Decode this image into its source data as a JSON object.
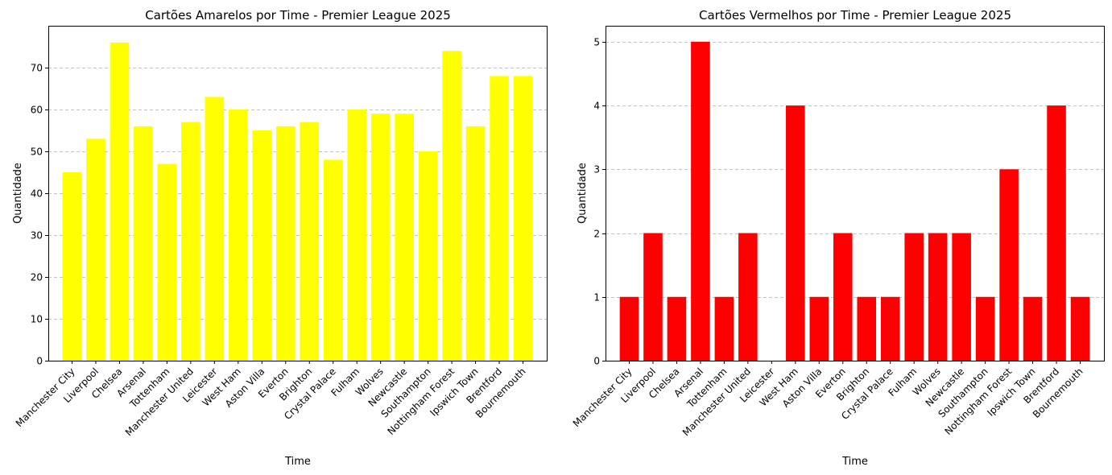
{
  "chart_data": [
    {
      "type": "bar",
      "title": "Cartões Amarelos por Time - Premier League 2025",
      "xlabel": "Time",
      "ylabel": "Quantidade",
      "color": "#ffff00",
      "ylim": [
        0,
        80
      ],
      "yticks": [
        0,
        10,
        20,
        30,
        40,
        50,
        60,
        70
      ],
      "grid": "y-dashed",
      "categories": [
        "Manchester City",
        "Liverpool",
        "Chelsea",
        "Arsenal",
        "Tottenham",
        "Manchester United",
        "Leicester",
        "West Ham",
        "Aston Villa",
        "Everton",
        "Brighton",
        "Crystal Palace",
        "Fulham",
        "Wolves",
        "Newcastle",
        "Southampton",
        "Nottingham Forest",
        "Ipswich Town",
        "Brentford",
        "Bournemouth"
      ],
      "values": [
        45,
        53,
        76,
        56,
        47,
        57,
        63,
        60,
        55,
        56,
        57,
        48,
        60,
        59,
        59,
        50,
        74,
        56,
        68,
        68
      ]
    },
    {
      "type": "bar",
      "title": "Cartões Vermelhos por Time - Premier League 2025",
      "xlabel": "Time",
      "ylabel": "Quantidade",
      "color": "#ff0000",
      "ylim": [
        0,
        5.25
      ],
      "yticks": [
        0,
        1,
        2,
        3,
        4,
        5
      ],
      "grid": "y-dashed",
      "categories": [
        "Manchester City",
        "Liverpool",
        "Chelsea",
        "Arsenal",
        "Tottenham",
        "Manchester United",
        "Leicester",
        "West Ham",
        "Aston Villa",
        "Everton",
        "Brighton",
        "Crystal Palace",
        "Fulham",
        "Wolves",
        "Newcastle",
        "Southampton",
        "Nottingham Forest",
        "Ipswich Town",
        "Brentford",
        "Bournemouth"
      ],
      "values": [
        1,
        2,
        1,
        5,
        1,
        2,
        0,
        4,
        1,
        2,
        1,
        1,
        2,
        2,
        2,
        1,
        3,
        1,
        4,
        1
      ]
    }
  ]
}
